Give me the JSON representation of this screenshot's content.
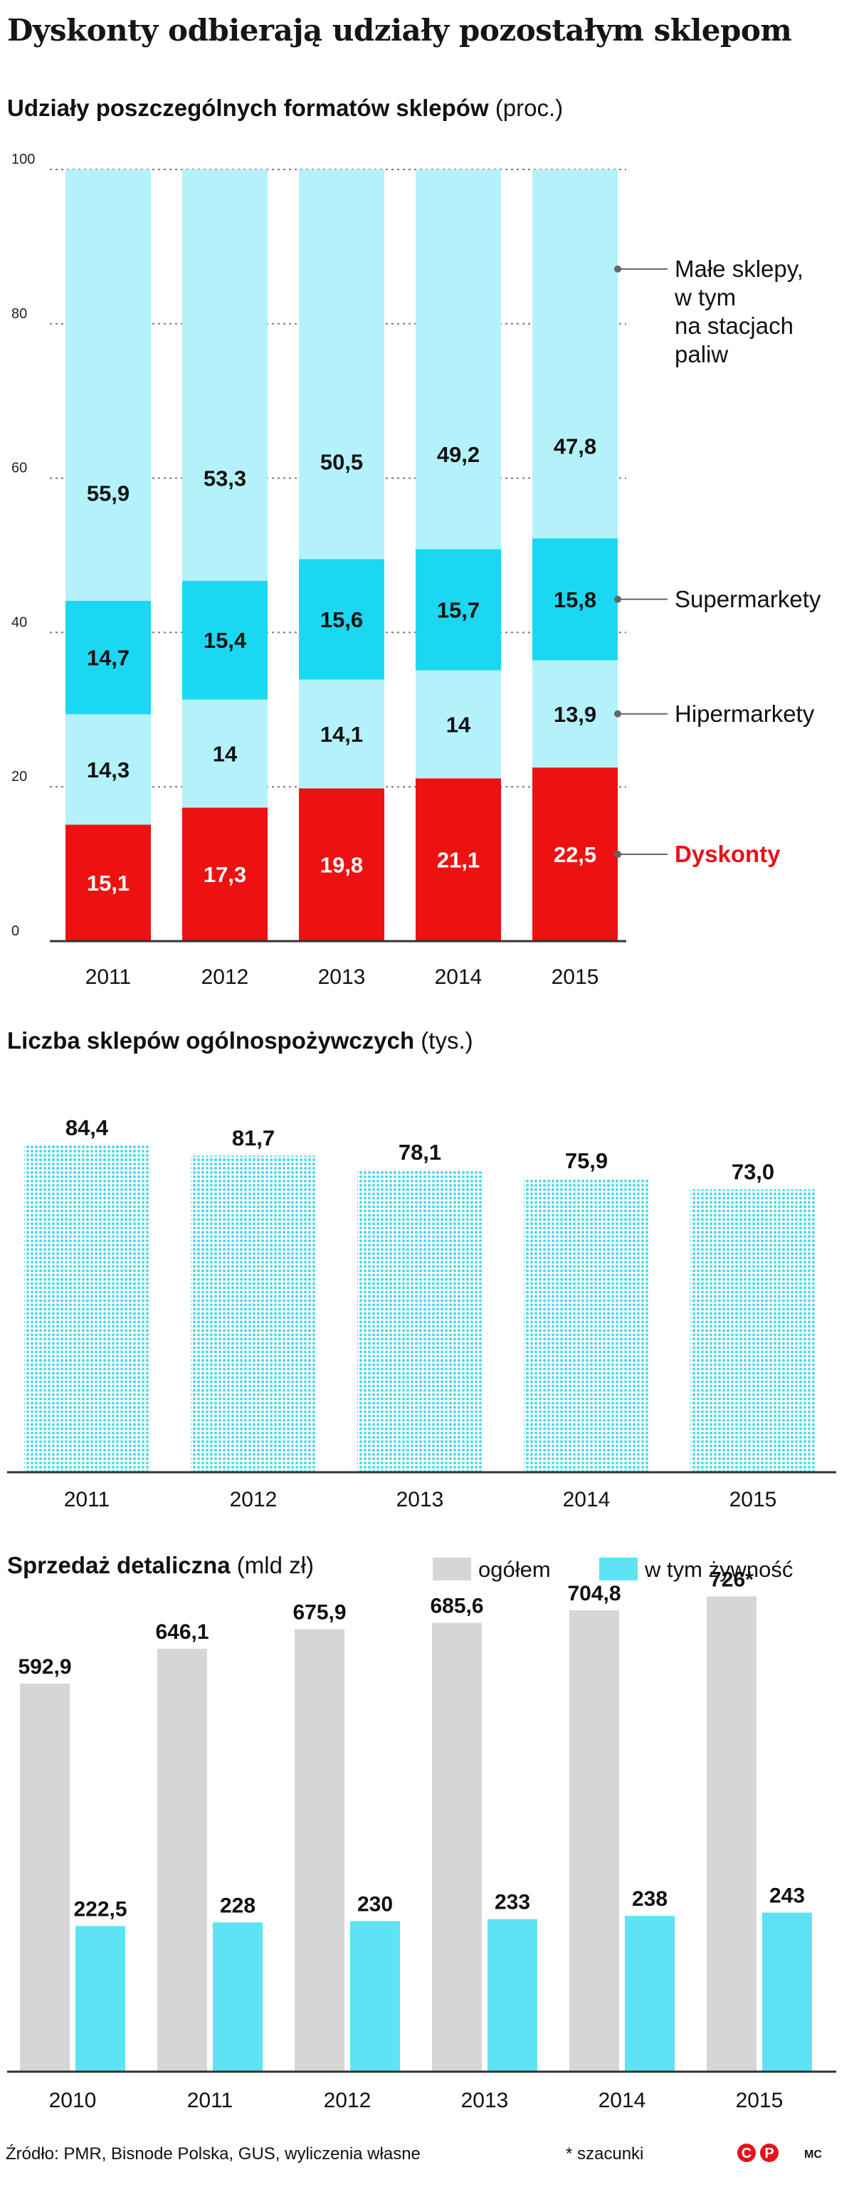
{
  "title": "Dyskonty odbierają udziały pozostałym sklepom",
  "colors": {
    "small_shops": "#b3f2fa",
    "supermarkets": "#1ad8f2",
    "hypermarkets": "#b3f2fa",
    "discounts": "#ee1111",
    "discounts_label": "#e8101a",
    "store_count_dots": "#4fd9ea",
    "sales_total": "#d6d6d6",
    "sales_food": "#5ee3f4",
    "grid": "#777777"
  },
  "chart_data": [
    {
      "type": "bar",
      "stacked": true,
      "title": "Udziały poszczególnych formatów sklepów",
      "unit": "(proc.)",
      "categories": [
        "2011",
        "2012",
        "2013",
        "2014",
        "2015"
      ],
      "series": [
        {
          "name": "Dyskonty",
          "values": [
            15.1,
            17.3,
            19.8,
            21.1,
            22.5
          ]
        },
        {
          "name": "Hipermarkety",
          "values": [
            14.3,
            14,
            14.1,
            14,
            13.9
          ]
        },
        {
          "name": "Supermarkety",
          "values": [
            14.7,
            15.4,
            15.6,
            15.7,
            15.8
          ]
        },
        {
          "name": "Małe sklepy, w tym na stacjach paliw",
          "values": [
            55.9,
            53.3,
            50.5,
            49.2,
            47.8
          ]
        }
      ],
      "value_labels": [
        [
          "15,1",
          "17,3",
          "19,8",
          "21,1",
          "22,5"
        ],
        [
          "14,3",
          "14",
          "14,1",
          "14",
          "13,9"
        ],
        [
          "14,7",
          "15,4",
          "15,6",
          "15,7",
          "15,8"
        ],
        [
          "55,9",
          "53,3",
          "50,5",
          "49,2",
          "47,8"
        ]
      ],
      "legend_labels": {
        "small_shops": [
          "Małe sklepy,",
          "w tym",
          "na stacjach",
          "paliw"
        ],
        "supermarkets": "Supermarkety",
        "hypermarkets": "Hipermarkety",
        "discounts": "Dyskonty"
      },
      "ylim": [
        0,
        100
      ],
      "yticks": [
        0,
        20,
        40,
        60,
        80,
        100
      ],
      "grid": true
    },
    {
      "type": "bar",
      "title": "Liczba sklepów ogólnospożywczych",
      "unit": "(tys.)",
      "categories": [
        "2011",
        "2012",
        "2013",
        "2014",
        "2015"
      ],
      "values": [
        84.4,
        81.7,
        78.1,
        75.9,
        73.0
      ],
      "value_labels": [
        "84,4",
        "81,7",
        "78,1",
        "75,9",
        "73,0"
      ],
      "ylim": [
        0,
        90
      ]
    },
    {
      "type": "bar",
      "title": "Sprzedaż detaliczna",
      "unit": "(mld zł)",
      "categories": [
        "2010",
        "2011",
        "2012",
        "2013",
        "2014",
        "2015"
      ],
      "series": [
        {
          "name": "ogółem",
          "values": [
            592.9,
            646.1,
            675.9,
            685.6,
            704.8,
            726
          ]
        },
        {
          "name": "w tym żywność",
          "values": [
            222.5,
            228,
            230,
            233,
            238,
            243
          ]
        }
      ],
      "value_labels": [
        [
          "592,9",
          "646,1",
          "675,9",
          "685,6",
          "704,8",
          "726*"
        ],
        [
          "222,5",
          "228",
          "230",
          "233",
          "238",
          "243"
        ]
      ],
      "legend": [
        "ogółem",
        "w tym żywność"
      ],
      "ylim": [
        0,
        870
      ]
    }
  ],
  "footer": {
    "source": "Źródło: PMR, Bisnode Polska, GUS, wyliczenia własne",
    "note": "* szacunki",
    "author": "MC",
    "logo_text": "CP"
  }
}
